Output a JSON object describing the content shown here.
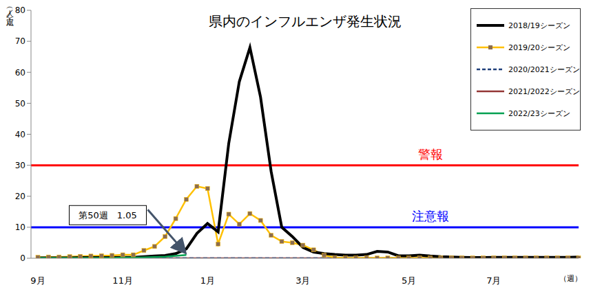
{
  "chart_data": {
    "type": "line",
    "title": "県内のインフルエンザ発生状況",
    "y_label": "（人／定点）",
    "x_label": "（週）",
    "categories": [
      "9月",
      null,
      null,
      null,
      null,
      null,
      null,
      null,
      "11月",
      null,
      null,
      null,
      null,
      null,
      null,
      null,
      "1月",
      null,
      null,
      null,
      null,
      null,
      null,
      null,
      null,
      "3月",
      null,
      null,
      null,
      null,
      null,
      null,
      null,
      null,
      null,
      "5月",
      null,
      null,
      null,
      null,
      null,
      null,
      null,
      "7月",
      null,
      null,
      null,
      null,
      null,
      null,
      null,
      null
    ],
    "series": [
      {
        "name": "2018/19シーズン",
        "color": "#000000",
        "line_style": "solid",
        "values": [
          0.1,
          0.1,
          0.1,
          0.1,
          0.2,
          0.2,
          0.2,
          0.2,
          0.3,
          0.3,
          0.5,
          0.7,
          0.9,
          1.5,
          3.0,
          8.0,
          11.2,
          8.5,
          37,
          57,
          68,
          52,
          28,
          10,
          7,
          3.5,
          2,
          1.5,
          1.2,
          1.0,
          1.0,
          1.2,
          2.2,
          2.0,
          0.8,
          0.8,
          1.0,
          0.7,
          0.5,
          0.4,
          0.3,
          0.2,
          0.2,
          0.3,
          0.3,
          0.3,
          0.3,
          0.3,
          0.3,
          0.3,
          0.3,
          0.4
        ]
      },
      {
        "name": "2019/20シーズン",
        "color": "#ffc000",
        "marker": "square",
        "line_style": "solid",
        "values": [
          0.3,
          0.4,
          0.4,
          0.5,
          0.6,
          0.7,
          0.8,
          0.9,
          1.1,
          1.1,
          2.5,
          3.8,
          7.0,
          12.8,
          19.0,
          23.2,
          22.5,
          4.6,
          14.2,
          11.0,
          14.4,
          12.2,
          7.4,
          5.4,
          5.0,
          4.2,
          2.7,
          1.0,
          0.2,
          0.1,
          0.1,
          0.1,
          0.1,
          0.1,
          0.1,
          0.1,
          0.1,
          0.1,
          0.1,
          0.1,
          0.1,
          0.1,
          0.1,
          0.1,
          0.1,
          0.1,
          0.1,
          0.1,
          0.1,
          0.1,
          0.1,
          0.1
        ]
      },
      {
        "name": "2020/2021シーズン",
        "color": "#1f3e7a",
        "line_style": "dashed",
        "values": [
          0,
          0,
          0,
          0,
          0,
          0,
          0,
          0,
          0,
          0,
          0,
          0,
          0,
          0,
          0,
          0,
          0,
          0,
          0,
          0,
          0,
          0,
          0,
          0,
          0,
          0,
          0,
          0,
          0,
          0,
          0,
          0,
          0,
          0,
          0,
          0,
          0,
          0,
          0,
          0,
          0,
          0,
          0,
          0,
          0,
          0,
          0,
          0,
          0,
          0,
          0,
          0
        ]
      },
      {
        "name": "2021/2022シーズン",
        "color": "#943634",
        "line_style": "solid",
        "values": [
          0,
          0,
          0,
          0,
          0,
          0,
          0,
          0,
          0,
          0,
          0,
          0,
          0,
          0,
          0,
          0,
          0,
          0,
          0,
          0,
          0,
          0,
          0,
          0,
          0,
          0,
          0,
          0,
          0,
          0,
          0,
          0,
          0,
          0,
          0,
          0,
          0,
          0,
          0,
          0,
          0,
          0,
          0,
          0,
          0,
          0,
          0,
          0,
          0,
          0,
          0,
          0
        ]
      },
      {
        "name": "2022/23シーズン",
        "color": "#00a050",
        "line_style": "solid",
        "values": [
          0.1,
          0.1,
          0.1,
          0.1,
          0.1,
          0.1,
          0.1,
          0.1,
          0.2,
          0.2,
          0.3,
          0.4,
          0.5,
          0.8,
          1.05,
          null,
          null,
          null,
          null,
          null,
          null,
          null,
          null,
          null,
          null,
          null,
          null,
          null,
          null,
          null,
          null,
          null,
          null,
          null,
          null,
          null,
          null,
          null,
          null,
          null,
          null,
          null,
          null,
          null,
          null,
          null,
          null,
          null,
          null,
          null,
          null,
          null
        ]
      }
    ],
    "reference_lines": [
      {
        "value": 30,
        "label": "警報",
        "color": "#ff0000"
      },
      {
        "value": 10,
        "label": "注意報",
        "color": "#0000ff"
      }
    ],
    "annotations": [
      {
        "text": "第50週　1.05",
        "index": 14,
        "value": 1.05
      }
    ],
    "ylim": [
      0,
      80
    ],
    "yticks": [
      0,
      10,
      20,
      30,
      40,
      50,
      60,
      70,
      80
    ],
    "grid": false,
    "legend": "top-right"
  }
}
